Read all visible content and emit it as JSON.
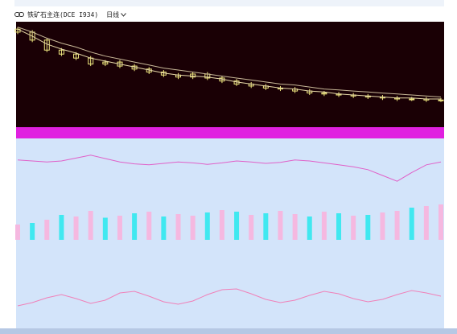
{
  "toolbar": {
    "link_icon": "link-icon",
    "symbol": "铁矿石主连(DCE I934)",
    "period": "日线",
    "chevron_icon": "chevron-down-icon"
  },
  "colors": {
    "price_bg": "#1a0005",
    "lower_bg": "#d3e4fa",
    "band": "#e020e0",
    "candle": "#f0e880",
    "ma1": "#e6d8a8",
    "ma2": "#c8b898",
    "volume_up": "#f5b8e0",
    "volume_down": "#40e8f0",
    "osc": "#f080b8",
    "macd_line": "#e060c8",
    "bottom_bar": "#b6c8e4"
  },
  "chart_data": [
    {
      "type": "candlestick",
      "panel": "price",
      "x": [
        1,
        3,
        5,
        7,
        9,
        11,
        13,
        15,
        17,
        19,
        21,
        23,
        25,
        27,
        29,
        31,
        33,
        35,
        37,
        39,
        41,
        43,
        45,
        47,
        49,
        51,
        53,
        55,
        57,
        59
      ],
      "close": [
        92,
        84,
        74,
        70,
        66,
        60,
        62,
        58,
        55,
        52,
        49,
        47,
        50,
        46,
        43,
        40,
        38,
        36,
        35,
        33,
        31,
        30,
        29,
        28,
        27,
        26,
        25,
        25,
        24,
        24
      ],
      "ma_fast": [
        95,
        88,
        80,
        75,
        71,
        66,
        63,
        60,
        57,
        54,
        51,
        49,
        48,
        47,
        45,
        42,
        40,
        38,
        36,
        35,
        33,
        32,
        30,
        29,
        28,
        27,
        26,
        26,
        25,
        25
      ],
      "ma_slow": [
        97,
        92,
        86,
        81,
        77,
        72,
        68,
        65,
        62,
        59,
        56,
        54,
        52,
        50,
        48,
        46,
        44,
        42,
        40,
        39,
        37,
        35,
        34,
        33,
        32,
        31,
        30,
        29,
        28,
        27
      ],
      "ylim": [
        0,
        100
      ]
    },
    {
      "type": "line",
      "panel": "indicator",
      "x": [
        1,
        3,
        5,
        7,
        9,
        11,
        13,
        15,
        17,
        19,
        21,
        23,
        25,
        27,
        29,
        31,
        33,
        35,
        37,
        39,
        41,
        43,
        45,
        47,
        49,
        51,
        53,
        55,
        57,
        59
      ],
      "values": [
        62,
        60,
        58,
        60,
        66,
        72,
        65,
        58,
        54,
        52,
        55,
        58,
        56,
        53,
        56,
        60,
        58,
        55,
        57,
        62,
        60,
        56,
        52,
        48,
        42,
        30,
        18,
        36,
        52,
        58
      ],
      "ylim": [
        0,
        100
      ]
    },
    {
      "type": "bar",
      "panel": "volume",
      "x": [
        1,
        3,
        5,
        7,
        9,
        11,
        13,
        15,
        17,
        19,
        21,
        23,
        25,
        27,
        29,
        31,
        33,
        35,
        37,
        39,
        41,
        43,
        45,
        47,
        49,
        51,
        53,
        55,
        57,
        59
      ],
      "values": [
        38,
        42,
        50,
        62,
        58,
        72,
        55,
        60,
        66,
        70,
        58,
        64,
        60,
        68,
        74,
        70,
        62,
        66,
        72,
        64,
        58,
        70,
        66,
        60,
        62,
        68,
        72,
        80,
        84,
        88
      ],
      "up": [
        true,
        false,
        true,
        false,
        true,
        true,
        false,
        true,
        false,
        true,
        false,
        true,
        true,
        false,
        true,
        false,
        true,
        false,
        true,
        true,
        false,
        true,
        false,
        true,
        false,
        true,
        true,
        false,
        true,
        true
      ],
      "ylim": [
        0,
        100
      ]
    },
    {
      "type": "line",
      "panel": "macd",
      "x": [
        1,
        3,
        5,
        7,
        9,
        11,
        13,
        15,
        17,
        19,
        21,
        23,
        25,
        27,
        29,
        31,
        33,
        35,
        37,
        39,
        41,
        43,
        45,
        47,
        49,
        51,
        53,
        55,
        57,
        59
      ],
      "values": [
        30,
        38,
        50,
        58,
        48,
        36,
        44,
        62,
        66,
        54,
        40,
        34,
        42,
        58,
        70,
        72,
        60,
        46,
        38,
        44,
        56,
        66,
        60,
        48,
        40,
        46,
        58,
        68,
        62,
        54
      ],
      "ylim": [
        0,
        100
      ]
    }
  ]
}
